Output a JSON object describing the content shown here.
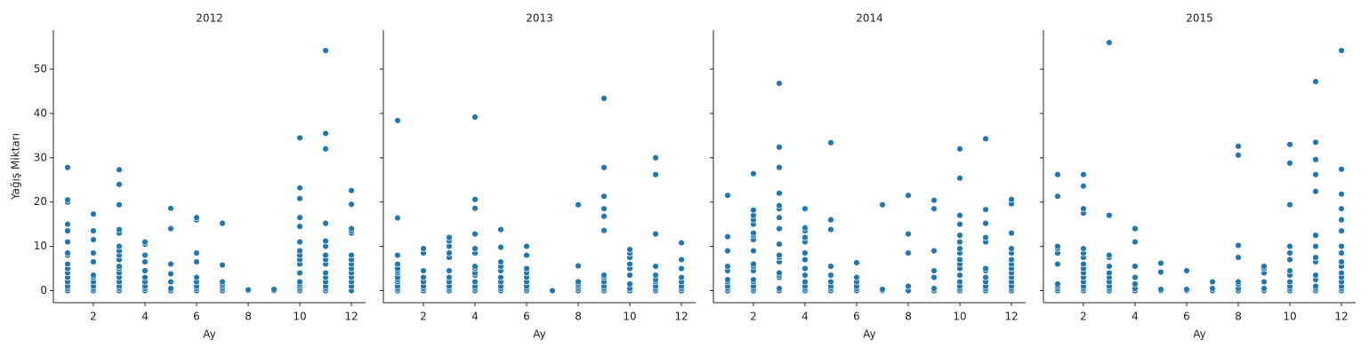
{
  "chart_data": [
    {
      "type": "scatter",
      "title": "2012",
      "xlabel": "Ay",
      "ylabel": "Yağış Miktarı",
      "color": "#1f77b4",
      "x": [
        1,
        1,
        1,
        1,
        1,
        1,
        1,
        1,
        1,
        1,
        1,
        1,
        1,
        1,
        1,
        1,
        2,
        2,
        2,
        2,
        2,
        2,
        2,
        2,
        2,
        2,
        2,
        3,
        3,
        3,
        3,
        3,
        3,
        3,
        3,
        3,
        3,
        3,
        3,
        3,
        3,
        3,
        3,
        3,
        4,
        4,
        4,
        4,
        4,
        4,
        4,
        4,
        4,
        4,
        5,
        5,
        5,
        5,
        5,
        5,
        5,
        6,
        6,
        6,
        6,
        6,
        6,
        6,
        6,
        6,
        7,
        7,
        7,
        7,
        7,
        7,
        7,
        8,
        8,
        9,
        9,
        10,
        10,
        10,
        10,
        10,
        10,
        10,
        10,
        10,
        10,
        10,
        10,
        10,
        10,
        10,
        10,
        11,
        11,
        11,
        11,
        11,
        11,
        11,
        11,
        11,
        11,
        11,
        11,
        11,
        11,
        11,
        12,
        12,
        12,
        12,
        12,
        12,
        12,
        12,
        12,
        12,
        12,
        12,
        12,
        12
      ],
      "values": [
        0,
        0.5,
        1,
        2,
        3,
        4,
        5,
        6,
        8,
        8.5,
        11,
        13.5,
        15,
        20,
        20.5,
        27.8,
        0,
        0.5,
        1,
        2,
        3,
        3.5,
        6.5,
        8.5,
        11.5,
        13.5,
        17.3,
        0,
        0.5,
        1,
        2,
        3,
        4,
        5,
        5.5,
        7,
        8,
        9,
        10,
        13,
        13.8,
        19.4,
        24,
        27.3,
        0,
        0.5,
        1,
        2,
        3,
        4.5,
        6.5,
        8,
        10.5,
        11,
        0,
        0.5,
        2,
        3.8,
        6,
        14,
        18.6,
        0,
        0.5,
        1,
        2,
        3,
        6.5,
        8.5,
        16,
        16.5,
        0,
        0.5,
        1,
        1.5,
        2,
        5.8,
        15.2,
        0,
        0.2,
        0,
        0.3,
        0,
        0.5,
        1,
        1.5,
        2,
        4,
        6,
        7,
        8,
        9,
        11,
        14.5,
        16.5,
        20.8,
        23.2,
        34.5,
        0,
        0.5,
        1,
        2,
        3,
        4,
        6,
        7,
        8,
        10,
        11.2,
        15.2,
        32,
        35.5,
        54.2,
        0,
        1,
        2,
        3,
        4,
        5,
        6,
        7,
        8,
        13,
        13.5,
        14,
        19.5,
        22.6
      ],
      "xlim": [
        0.45,
        12.55
      ],
      "xticks": [
        2,
        4,
        6,
        8,
        10,
        12
      ],
      "ylim": [
        -2.7,
        58.8
      ],
      "yticks": [
        0,
        10,
        20,
        30,
        40,
        50
      ]
    },
    {
      "type": "scatter",
      "title": "2013",
      "xlabel": "Ay",
      "color": "#1f77b4",
      "x": [
        1,
        1,
        1,
        1,
        1,
        1,
        1,
        1,
        1,
        1,
        1,
        1,
        1,
        2,
        2,
        2,
        2,
        2,
        2,
        2,
        2,
        3,
        3,
        3,
        3,
        3,
        3,
        3,
        3,
        3,
        3,
        3,
        4,
        4,
        4,
        4,
        4,
        4,
        4,
        4,
        4,
        4,
        4,
        4,
        4,
        4,
        5,
        5,
        5,
        5,
        5,
        5,
        5,
        5,
        5,
        5,
        6,
        6,
        6,
        6,
        6,
        6,
        6,
        6,
        6,
        7,
        8,
        8,
        8,
        8,
        8,
        8,
        8,
        9,
        9,
        9,
        9,
        9,
        9,
        9,
        9,
        9,
        9,
        9,
        9,
        10,
        10,
        10,
        10,
        10,
        10,
        10,
        10,
        10,
        11,
        11,
        11,
        11,
        11,
        11,
        11,
        11,
        11,
        11,
        12,
        12,
        12,
        12,
        12,
        12,
        12,
        12
      ],
      "values": [
        0,
        0.5,
        1,
        2,
        2.5,
        3,
        4,
        4.5,
        5,
        6,
        8,
        16.4,
        38.4,
        0,
        0.5,
        1,
        2,
        3,
        4.5,
        8.5,
        9.5,
        0,
        0.5,
        1,
        2,
        3,
        4.5,
        7.5,
        8.5,
        10,
        11.2,
        12,
        0,
        0.5,
        1,
        2,
        3.5,
        4,
        5,
        5.5,
        8.5,
        9.5,
        12.8,
        18.6,
        20.6,
        39.2,
        0,
        0.5,
        1,
        2,
        3,
        4.5,
        5.5,
        6.5,
        9.8,
        13.8,
        0,
        0.5,
        1,
        2,
        3,
        4,
        5,
        8,
        10,
        0,
        0,
        0.5,
        1,
        1.5,
        2,
        5.6,
        19.4,
        0,
        0.5,
        1,
        2,
        3,
        3.5,
        13.6,
        16.8,
        18.5,
        21.3,
        27.8,
        43.4,
        0,
        0.5,
        1.5,
        3.5,
        5,
        6,
        7.5,
        8.5,
        9.3,
        0,
        0.5,
        1,
        2,
        2.5,
        3.5,
        5.5,
        12.8,
        26.2,
        30,
        0,
        0.5,
        1,
        2,
        3,
        5,
        7,
        10.8
      ],
      "xlim": [
        0.45,
        12.55
      ],
      "xticks": [
        2,
        4,
        6,
        8,
        10,
        12
      ],
      "ylim": [
        -2.7,
        58.8
      ],
      "yticks": [
        0,
        10,
        20,
        30,
        40,
        50
      ]
    },
    {
      "type": "scatter",
      "title": "2014",
      "xlabel": "Ay",
      "color": "#1f77b4",
      "x": [
        1,
        1,
        1,
        1,
        1,
        1,
        1,
        1,
        1,
        1,
        2,
        2,
        2,
        2,
        2,
        2,
        2,
        2,
        2,
        2,
        2,
        2,
        2,
        2,
        2,
        2,
        2,
        3,
        3,
        3,
        3,
        3,
        3,
        3,
        3,
        3,
        3,
        3,
        3,
        3,
        3,
        3,
        3,
        3,
        4,
        4,
        4,
        4,
        4,
        4,
        4,
        4,
        4,
        4,
        4,
        4,
        4,
        5,
        5,
        5,
        5,
        5,
        5,
        5,
        5,
        5,
        6,
        6,
        6,
        6,
        6,
        6,
        7,
        7,
        7,
        8,
        8,
        8,
        8,
        8,
        9,
        9,
        9,
        9,
        9,
        9,
        9,
        10,
        10,
        10,
        10,
        10,
        10,
        10,
        10,
        10,
        10,
        10,
        10,
        10,
        10,
        10,
        10,
        11,
        11,
        11,
        11,
        11,
        11,
        11,
        11,
        11,
        11,
        11,
        11,
        12,
        12,
        12,
        12,
        12,
        12,
        12,
        12,
        12,
        12,
        12,
        12,
        12,
        12
      ],
      "values": [
        0,
        0.5,
        1,
        2,
        2.5,
        4.5,
        5.5,
        9,
        12.2,
        21.5,
        0,
        0.5,
        1,
        2,
        2.5,
        4.5,
        5.5,
        6,
        9,
        11.5,
        12.5,
        13,
        15,
        16,
        17,
        18.2,
        26.4,
        0,
        0.5,
        3,
        3.5,
        4,
        6.5,
        7.5,
        8,
        10.5,
        14,
        16.5,
        18.5,
        19.2,
        22,
        27.8,
        32.4,
        46.8,
        0,
        0.5,
        1,
        2,
        3.5,
        5,
        7,
        8.5,
        11,
        12,
        13.5,
        14.2,
        18.5,
        0,
        0.5,
        1,
        2,
        3.5,
        5.5,
        13.8,
        16,
        33.4,
        0,
        0.5,
        1,
        2,
        3,
        6.3,
        0,
        0.3,
        19.4,
        0,
        1,
        8.5,
        12.8,
        21.5,
        0,
        0.5,
        3,
        4.5,
        9,
        18.5,
        20.4,
        0,
        0.5,
        1,
        2,
        3.5,
        5,
        6,
        7,
        8.5,
        9.5,
        11,
        12.5,
        15,
        17,
        25.4,
        32,
        0,
        0.5,
        1,
        2,
        3,
        4.5,
        5,
        11,
        12,
        15.2,
        18.3,
        34.3,
        0,
        0.5,
        1,
        2,
        3,
        4,
        5,
        6,
        7,
        8.5,
        9.5,
        13,
        19.6,
        20.6
      ],
      "xlim": [
        0.45,
        12.55
      ],
      "xticks": [
        2,
        4,
        6,
        8,
        10,
        12
      ],
      "ylim": [
        -2.7,
        58.8
      ],
      "yticks": [
        0,
        10,
        20,
        30,
        40,
        50
      ]
    },
    {
      "type": "scatter",
      "title": "2015",
      "xlabel": "Ay",
      "color": "#1f77b4",
      "x": [
        1,
        1,
        1,
        1,
        1,
        1,
        1,
        1,
        1,
        1,
        2,
        2,
        2,
        2,
        2,
        2,
        2,
        2,
        2,
        2,
        2,
        2,
        2,
        2,
        2,
        3,
        3,
        3,
        3,
        3,
        3,
        3,
        3,
        3,
        3,
        3,
        4,
        4,
        4,
        4,
        4,
        4,
        4,
        5,
        5,
        5,
        5,
        6,
        6,
        6,
        7,
        7,
        7,
        8,
        8,
        8,
        8,
        8,
        8,
        8,
        8,
        9,
        9,
        9,
        9,
        9,
        9,
        10,
        10,
        10,
        10,
        10,
        10,
        10,
        10,
        10,
        10,
        10,
        10,
        11,
        11,
        11,
        11,
        11,
        11,
        11,
        11,
        11,
        11,
        11,
        11,
        11,
        11,
        12,
        12,
        12,
        12,
        12,
        12,
        12,
        12,
        12,
        12,
        12,
        12,
        12,
        12,
        12,
        12
      ],
      "values": [
        0,
        0.5,
        1,
        1.5,
        6,
        8.5,
        9.5,
        10,
        21.3,
        26.2,
        0,
        0.5,
        1,
        2,
        3,
        4,
        5,
        6,
        7.5,
        8.5,
        9.5,
        17.5,
        18.5,
        23.6,
        26.2,
        0,
        0.5,
        1,
        2,
        3,
        4,
        5.5,
        7.5,
        8,
        17,
        56,
        0,
        0.5,
        1.5,
        3,
        5.5,
        11,
        14,
        0,
        0.3,
        4.2,
        6.2,
        0,
        0.3,
        4.5,
        0,
        0.5,
        2,
        0,
        0.5,
        1.5,
        2,
        7.5,
        10.2,
        30.6,
        32.6,
        0,
        0.5,
        2,
        4,
        5,
        5.5,
        0,
        0.5,
        1,
        2,
        3.5,
        4.5,
        7,
        8.5,
        10,
        19.4,
        28.8,
        33,
        0,
        0.5,
        1,
        2.5,
        3.5,
        6.5,
        7.5,
        10,
        12.5,
        22.4,
        26.2,
        29.6,
        33.5,
        47.2,
        0,
        0.5,
        1,
        2,
        3,
        4,
        5.5,
        6.5,
        8.5,
        10,
        13.5,
        16,
        18.5,
        21.8,
        27.4,
        54.2
      ],
      "xlim": [
        0.45,
        12.55
      ],
      "xticks": [
        2,
        4,
        6,
        8,
        10,
        12
      ],
      "ylim": [
        -2.7,
        58.8
      ],
      "yticks": [
        0,
        10,
        20,
        30,
        40,
        50
      ]
    }
  ]
}
